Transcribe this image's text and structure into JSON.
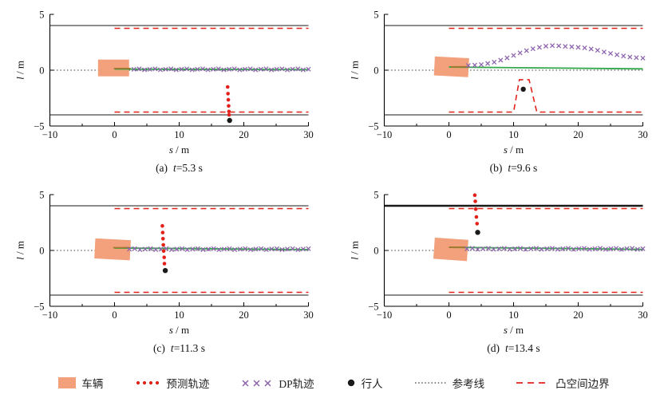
{
  "figure": {
    "colors": {
      "vehicle": "#F2A17C",
      "predicted": "#E3211B",
      "dp": "#8D63AD",
      "pedestrian": "#1A1A1A",
      "reference_line": "#3A3A3A",
      "reference_path": "#33A94C",
      "boundary": "#E3211B",
      "road_edge": "#1A1A1A",
      "ego_history": "#A4762E"
    },
    "legend": {
      "items": [
        {
          "id": "vehicle",
          "label": "车辆"
        },
        {
          "id": "predicted-trajectory",
          "label": "预测轨迹"
        },
        {
          "id": "dp-trajectory",
          "label": "DP轨迹"
        },
        {
          "id": "pedestrian",
          "label": "行人"
        },
        {
          "id": "reference-line",
          "label": "参考线"
        },
        {
          "id": "convex-boundary",
          "label": "凸空间边界"
        }
      ]
    }
  },
  "chart_data": [
    {
      "type": "line",
      "caption": {
        "index": "(a)",
        "time_var": "t",
        "time_rest": "=5.3 s"
      },
      "xlabel": {
        "var": "s",
        "rest": " / m"
      },
      "ylabel": {
        "var": "l",
        "rest": " / m"
      },
      "xlim": [
        -10,
        30
      ],
      "ylim": [
        -5,
        5
      ],
      "xticks": [
        -10,
        0,
        10,
        20,
        30
      ],
      "xticks_minor": [
        -5,
        5,
        15,
        25
      ],
      "yticks": [
        5,
        0,
        -5
      ],
      "road_edges_y": [
        4,
        -4
      ],
      "reference_line_y": 0,
      "convex_boundary": {
        "upper": [
          [
            0,
            3.75
          ],
          [
            30,
            3.75
          ]
        ],
        "lower": [
          [
            0,
            -3.75
          ],
          [
            30,
            -3.75
          ]
        ]
      },
      "vehicle": {
        "cx": -0.15,
        "cy": 0.2,
        "w": 4.8,
        "h": 1.5,
        "angle_deg": 0
      },
      "ego_history": [
        [
          -0.1,
          0.15
        ],
        [
          2.5,
          0.15
        ]
      ],
      "reference_path": [
        [
          0,
          0.1
        ],
        [
          30,
          0.05
        ]
      ],
      "dp_trajectory": {
        "x_start": 3,
        "x_end": 30,
        "count": 34,
        "y_const": 0.08
      },
      "predicted_trajectory": [
        [
          17.5,
          -1.5
        ],
        [
          17.55,
          -2.1
        ],
        [
          17.6,
          -2.65
        ],
        [
          17.65,
          -3.2
        ],
        [
          17.7,
          -3.7
        ],
        [
          17.72,
          -4.0
        ]
      ],
      "pedestrian": [
        17.8,
        -4.5
      ]
    },
    {
      "type": "line",
      "caption": {
        "index": "(b)",
        "time_var": "t",
        "time_rest": "=9.6 s"
      },
      "xlabel": {
        "var": "s",
        "rest": " / m"
      },
      "ylabel": {
        "var": "l",
        "rest": " / m"
      },
      "xlim": [
        -10,
        30
      ],
      "ylim": [
        -5,
        5
      ],
      "xticks": [
        -10,
        0,
        10,
        20,
        30
      ],
      "xticks_minor": [
        -5,
        5,
        15,
        25
      ],
      "yticks": [
        5,
        0,
        -5
      ],
      "road_edges_y": [
        4,
        -4
      ],
      "reference_line_y": 0,
      "convex_boundary": {
        "upper": [
          [
            0,
            3.75
          ],
          [
            30,
            3.75
          ]
        ],
        "lower": [
          [
            0,
            -3.75
          ],
          [
            10,
            -3.75
          ],
          [
            10.9,
            -0.85
          ],
          [
            12.4,
            -0.85
          ],
          [
            13.6,
            -3.75
          ],
          [
            30,
            -3.75
          ]
        ]
      },
      "vehicle": {
        "cx": 0.4,
        "cy": 0.3,
        "w": 5.3,
        "h": 1.7,
        "angle_deg": 3
      },
      "ego_history": [
        [
          0.3,
          0.3
        ],
        [
          3.1,
          0.3
        ]
      ],
      "reference_path": [
        [
          0,
          0.28
        ],
        [
          30,
          0.12
        ]
      ],
      "dp_trajectory": {
        "x_start": 3,
        "x_end": 30,
        "y_values": [
          0.42,
          0.45,
          0.5,
          0.6,
          0.72,
          0.9,
          1.1,
          1.32,
          1.55,
          1.75,
          1.92,
          2.05,
          2.15,
          2.2,
          2.18,
          2.13,
          2.1,
          2.05,
          2.0,
          1.9,
          1.78,
          1.63,
          1.5,
          1.38,
          1.27,
          1.18,
          1.12,
          1.08
        ]
      },
      "pedestrian": [
        11.5,
        -1.7
      ]
    },
    {
      "type": "line",
      "caption": {
        "index": "(c)",
        "time_var": "t",
        "time_rest": "=11.3 s"
      },
      "xlabel": {
        "var": "s",
        "rest": " / m"
      },
      "ylabel": {
        "var": "l",
        "rest": " / m"
      },
      "xlim": [
        -10,
        30
      ],
      "ylim": [
        -5,
        5
      ],
      "xticks": [
        -10,
        0,
        10,
        20,
        30
      ],
      "xticks_minor": [
        -5,
        5,
        15,
        25
      ],
      "yticks": [
        5,
        0,
        -5
      ],
      "road_edges_y": [
        4,
        -4
      ],
      "reference_line_y": 0,
      "convex_boundary": {
        "upper": [
          [
            0,
            3.75
          ],
          [
            30,
            3.75
          ]
        ],
        "lower": [
          [
            0,
            -3.75
          ],
          [
            30,
            -3.75
          ]
        ]
      },
      "vehicle": {
        "cx": -0.3,
        "cy": 0.1,
        "w": 5.5,
        "h": 1.8,
        "angle_deg": 3
      },
      "ego_history": [
        [
          -0.2,
          0.25
        ],
        [
          2.4,
          0.25
        ]
      ],
      "reference_path": [
        [
          0,
          0.22
        ],
        [
          30,
          0.08
        ]
      ],
      "dp_trajectory": {
        "x_start": 2.3,
        "x_end": 30,
        "count": 35,
        "y_const": 0.12
      },
      "predicted_trajectory": [
        [
          7.4,
          2.2
        ],
        [
          7.45,
          1.6
        ],
        [
          7.5,
          1.05
        ],
        [
          7.55,
          0.5
        ],
        [
          7.6,
          -0.05
        ],
        [
          7.68,
          -0.62
        ],
        [
          7.72,
          -1.18
        ]
      ],
      "pedestrian": [
        7.85,
        -1.8
      ]
    },
    {
      "type": "line",
      "caption": {
        "index": "(d)",
        "time_var": "t",
        "time_rest": "=13.4 s"
      },
      "xlabel": {
        "var": "s",
        "rest": " / m"
      },
      "ylabel": {
        "var": "l",
        "rest": " / m"
      },
      "xlim": [
        -10,
        30
      ],
      "ylim": [
        -5,
        5
      ],
      "xticks": [
        -10,
        0,
        10,
        20,
        30
      ],
      "xticks_minor": [
        -5,
        5,
        15,
        25
      ],
      "yticks": [
        5,
        0,
        -5
      ],
      "road_edges_y": [
        4,
        -4
      ],
      "thick_top_edge": true,
      "reference_line_y": 0,
      "convex_boundary": {
        "upper": [
          [
            0,
            3.75
          ],
          [
            30,
            3.75
          ]
        ],
        "lower": [
          [
            0,
            -3.75
          ],
          [
            30,
            -3.75
          ]
        ]
      },
      "vehicle": {
        "cx": 0.3,
        "cy": 0.1,
        "w": 5.2,
        "h": 1.9,
        "angle_deg": 4
      },
      "ego_history": [
        [
          0,
          0.28
        ],
        [
          2.6,
          0.28
        ]
      ],
      "reference_path": [
        [
          0,
          0.28
        ],
        [
          30,
          0.1
        ]
      ],
      "dp_trajectory": {
        "x_start": 2.8,
        "x_end": 30,
        "count": 34,
        "y_const": 0.15
      },
      "predicted_trajectory": [
        [
          4.0,
          4.95
        ],
        [
          4.08,
          4.4
        ],
        [
          4.15,
          3.7
        ],
        [
          4.25,
          3.0
        ],
        [
          4.35,
          2.4
        ]
      ],
      "pedestrian": [
        4.45,
        1.62
      ]
    }
  ]
}
